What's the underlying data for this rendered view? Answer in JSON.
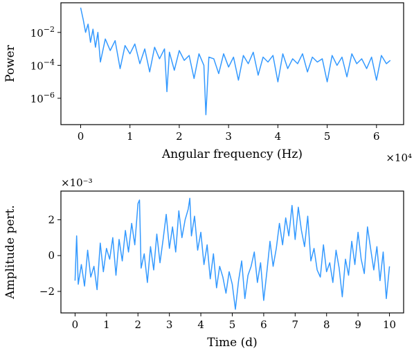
{
  "chart_data": [
    {
      "type": "line",
      "xlabel": "Angular frequency (Hz)",
      "ylabel": "Power",
      "x_offset_label": "×10⁴",
      "xscale": "linear",
      "yscale": "log",
      "xlim": [
        -0.4,
        6.55
      ],
      "ylim_log10": [
        -7.6,
        -0.2
      ],
      "xticks": [
        0,
        1,
        2,
        3,
        4,
        5,
        6
      ],
      "xtick_labels": [
        "0",
        "1",
        "2",
        "3",
        "4",
        "5",
        "6"
      ],
      "yticks_log10": [
        -6,
        -4,
        -2
      ],
      "ytick_labels": [
        {
          "base": "10",
          "exp": "−6"
        },
        {
          "base": "10",
          "exp": "−4"
        },
        {
          "base": "10",
          "exp": "−2"
        }
      ],
      "grid": false,
      "color": "#3399ff",
      "series": [
        {
          "x": [
            0.0,
            0.05,
            0.1,
            0.15,
            0.2,
            0.25,
            0.3,
            0.35,
            0.4,
            0.5,
            0.6,
            0.7,
            0.8,
            0.9,
            1.0,
            1.1,
            1.2,
            1.3,
            1.4,
            1.5,
            1.6,
            1.7,
            1.75,
            1.8,
            1.9,
            2.0,
            2.1,
            2.2,
            2.3,
            2.4,
            2.5,
            2.54,
            2.6,
            2.7,
            2.8,
            2.9,
            3.0,
            3.1,
            3.2,
            3.3,
            3.4,
            3.5,
            3.6,
            3.7,
            3.8,
            3.9,
            4.0,
            4.1,
            4.2,
            4.3,
            4.4,
            4.5,
            4.6,
            4.7,
            4.8,
            4.9,
            5.0,
            5.1,
            5.2,
            5.3,
            5.4,
            5.5,
            5.6,
            5.7,
            5.8,
            5.9,
            6.0,
            6.1,
            6.2,
            6.28
          ],
          "y_log10": [
            -0.5,
            -1.2,
            -2.0,
            -1.5,
            -2.6,
            -1.8,
            -2.9,
            -2.0,
            -3.8,
            -2.4,
            -3.1,
            -2.5,
            -4.2,
            -2.8,
            -3.3,
            -2.7,
            -3.9,
            -3.0,
            -4.4,
            -2.9,
            -3.6,
            -3.0,
            -5.6,
            -3.2,
            -4.3,
            -3.1,
            -3.7,
            -3.4,
            -4.8,
            -3.3,
            -4.0,
            -7.0,
            -3.5,
            -3.6,
            -4.5,
            -3.3,
            -4.1,
            -3.5,
            -4.9,
            -3.4,
            -3.9,
            -3.2,
            -4.6,
            -3.5,
            -3.8,
            -3.4,
            -5.0,
            -3.3,
            -4.2,
            -3.6,
            -3.9,
            -3.3,
            -4.4,
            -3.5,
            -3.8,
            -3.6,
            -5.0,
            -3.4,
            -4.0,
            -3.5,
            -4.7,
            -3.3,
            -3.9,
            -3.6,
            -4.2,
            -3.5,
            -4.9,
            -3.4,
            -3.9,
            -3.7
          ]
        }
      ]
    },
    {
      "type": "line",
      "xlabel": "Time (d)",
      "ylabel": "Amplitude pert.",
      "y_offset_label": "×10⁻³",
      "xlim": [
        -0.45,
        10.45
      ],
      "ylim": [
        -3.2,
        3.6
      ],
      "xticks": [
        0,
        1,
        2,
        3,
        4,
        5,
        6,
        7,
        8,
        9,
        10
      ],
      "xtick_labels": [
        "0",
        "1",
        "2",
        "3",
        "4",
        "5",
        "6",
        "7",
        "8",
        "9",
        "10"
      ],
      "yticks": [
        -2,
        0,
        2
      ],
      "ytick_labels": [
        "−2",
        "0",
        "2"
      ],
      "grid": false,
      "color": "#3399ff",
      "series": [
        {
          "x": [
            0.0,
            0.05,
            0.1,
            0.2,
            0.3,
            0.4,
            0.5,
            0.6,
            0.7,
            0.8,
            0.9,
            1.0,
            1.1,
            1.2,
            1.3,
            1.4,
            1.5,
            1.6,
            1.7,
            1.8,
            1.9,
            2.0,
            2.05,
            2.1,
            2.2,
            2.3,
            2.4,
            2.5,
            2.6,
            2.7,
            2.8,
            2.9,
            3.0,
            3.1,
            3.2,
            3.3,
            3.4,
            3.5,
            3.6,
            3.65,
            3.7,
            3.8,
            3.9,
            4.0,
            4.1,
            4.2,
            4.3,
            4.4,
            4.5,
            4.6,
            4.7,
            4.8,
            4.9,
            5.0,
            5.1,
            5.2,
            5.3,
            5.4,
            5.5,
            5.6,
            5.7,
            5.8,
            5.9,
            6.0,
            6.1,
            6.2,
            6.3,
            6.4,
            6.5,
            6.6,
            6.7,
            6.8,
            6.9,
            7.0,
            7.1,
            7.2,
            7.3,
            7.4,
            7.5,
            7.6,
            7.7,
            7.8,
            7.9,
            8.0,
            8.1,
            8.2,
            8.3,
            8.4,
            8.5,
            8.6,
            8.7,
            8.8,
            8.9,
            9.0,
            9.1,
            9.2,
            9.3,
            9.4,
            9.5,
            9.6,
            9.7,
            9.8,
            9.9,
            10.0
          ],
          "y": [
            -1.4,
            1.1,
            -1.6,
            -0.5,
            -1.7,
            0.3,
            -1.2,
            -0.6,
            -1.9,
            0.7,
            -0.9,
            0.4,
            -0.2,
            1.0,
            -1.1,
            0.9,
            -0.3,
            1.4,
            0.2,
            1.8,
            0.6,
            2.9,
            3.1,
            -0.7,
            0.1,
            -1.5,
            0.5,
            -0.8,
            1.2,
            -0.4,
            0.9,
            2.3,
            0.4,
            1.6,
            0.2,
            2.5,
            1.0,
            2.0,
            2.6,
            3.2,
            1.1,
            2.2,
            0.3,
            1.3,
            -0.5,
            0.6,
            -1.3,
            0.1,
            -1.8,
            -0.6,
            -1.2,
            -2.1,
            -0.9,
            -1.6,
            -3.0,
            -1.4,
            -0.3,
            -2.4,
            -1.1,
            -0.6,
            0.2,
            -1.5,
            -0.4,
            -2.5,
            -0.9,
            0.8,
            -0.6,
            0.4,
            1.8,
            0.6,
            2.1,
            1.1,
            2.8,
            0.9,
            2.7,
            1.4,
            0.5,
            2.2,
            -0.3,
            0.4,
            -0.8,
            -1.2,
            0.6,
            -0.9,
            -0.4,
            -1.5,
            0.3,
            -0.7,
            -2.3,
            -0.2,
            -1.1,
            0.8,
            -0.5,
            1.3,
            -0.2,
            -1.0,
            1.6,
            0.4,
            -0.8,
            0.5,
            -1.4,
            0.2,
            -2.4,
            -0.6
          ]
        }
      ]
    }
  ]
}
